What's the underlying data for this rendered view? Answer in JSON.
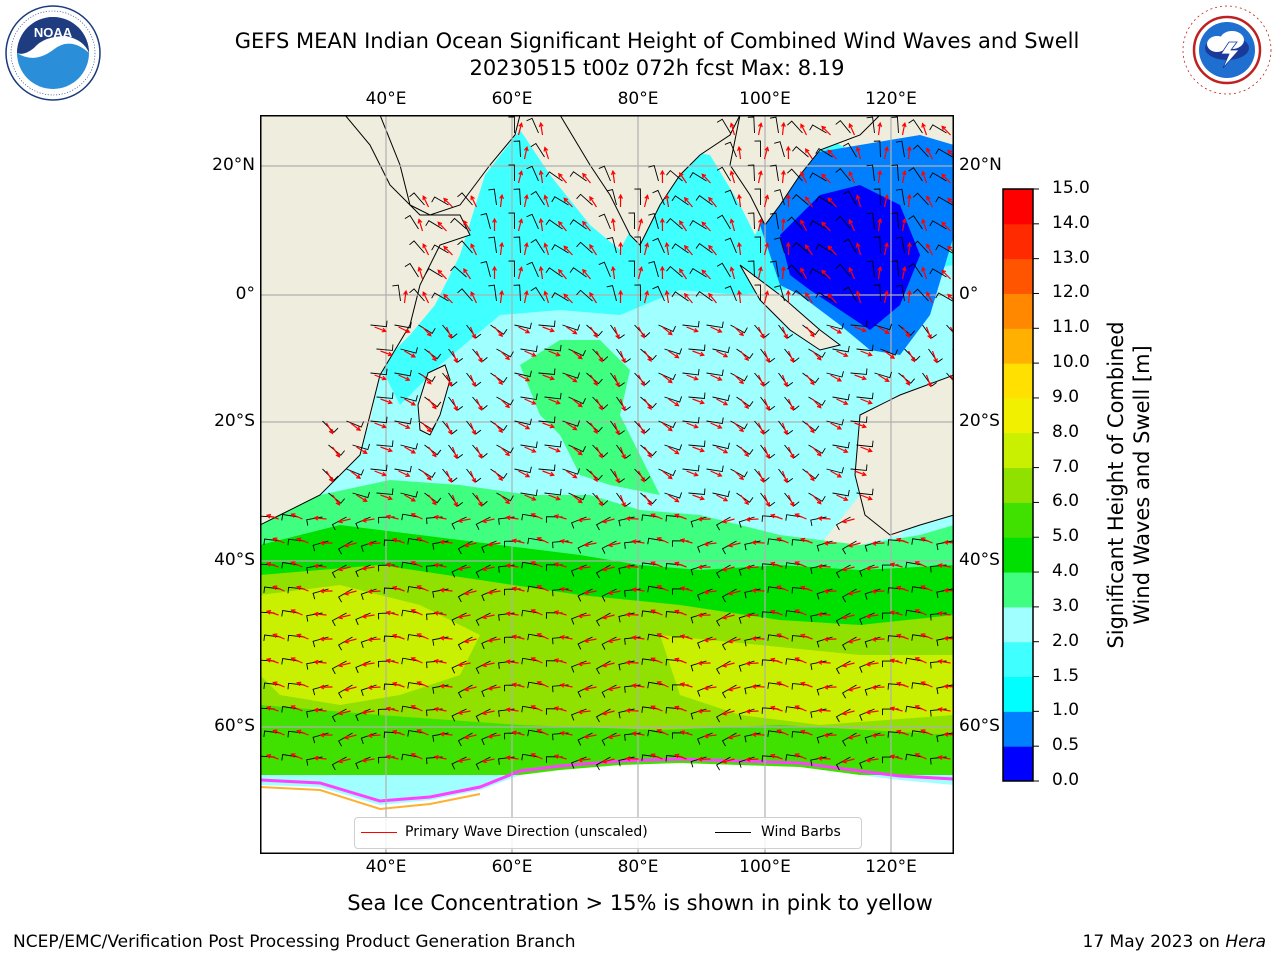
{
  "title_line1": "GEFS MEAN Indian Ocean Significant Height of Combined Wind Waves and Swell",
  "title_line2": "20230515 t00z 072h fcst   Max: 8.19",
  "logos": {
    "left": "noaa-logo",
    "right": "national-weather-service-logo",
    "left_text": "NOAA",
    "right_text": "NATIONAL WEATHER SERVICE"
  },
  "map": {
    "lon_labels": [
      "40°E",
      "60°E",
      "80°E",
      "100°E",
      "120°E"
    ],
    "lat_labels": [
      "20°N",
      "0°",
      "20°S",
      "40°S",
      "60°S"
    ],
    "lon_range": [
      20,
      130
    ],
    "lat_range": [
      -72,
      27
    ],
    "land_color": "#efeddd",
    "gridline_color": "#b0b0b0"
  },
  "legend": {
    "wave_label": "Primary Wave Direction (unscaled)",
    "wave_color": "#ff0000",
    "wind_label": "Wind Barbs",
    "wind_color": "#000000"
  },
  "colorbar": {
    "title_line1": "Significant Height of Combined",
    "title_line2": "Wind Waves and Swell [m]",
    "ticks": [
      "0.0",
      "0.5",
      "1.0",
      "1.5",
      "2.0",
      "3.0",
      "4.0",
      "5.0",
      "6.0",
      "7.0",
      "8.0",
      "9.0",
      "10.0",
      "11.0",
      "12.0",
      "13.0",
      "14.0",
      "15.0"
    ],
    "colors": [
      "#0000ff",
      "#0080ff",
      "#00ffff",
      "#40ffff",
      "#a0ffff",
      "#40ff80",
      "#00e000",
      "#40e000",
      "#90e000",
      "#c8f000",
      "#f0f000",
      "#ffe000",
      "#ffb000",
      "#ff8800",
      "#ff5500",
      "#ff2a00",
      "#ff0000"
    ]
  },
  "footer_note": "Sea Ice Concentration > 15% is shown in pink to yellow",
  "footer_left": "NCEP/EMC/Verification Post Processing Product Generation Branch",
  "footer_right_prefix": "17 May 2023 on ",
  "footer_right_host": "Hera"
}
